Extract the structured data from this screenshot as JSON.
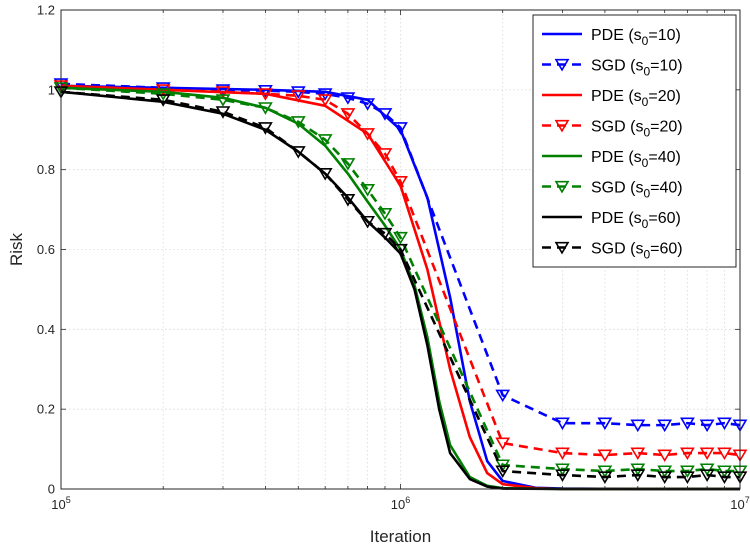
{
  "chart_data": {
    "type": "line",
    "title": "",
    "xlabel": "Iteration",
    "ylabel": "Risk",
    "xscale": "log",
    "xlim": [
      100000,
      10000000
    ],
    "ylim": [
      0,
      1.2
    ],
    "x_ticks": [
      {
        "value": 100000,
        "base": "10",
        "exp": "5"
      },
      {
        "value": 1000000,
        "base": "10",
        "exp": "6"
      },
      {
        "value": 10000000,
        "base": "10",
        "exp": "7"
      }
    ],
    "y_ticks": [
      {
        "value": 0,
        "label": "0"
      },
      {
        "value": 0.2,
        "label": "0.2"
      },
      {
        "value": 0.4,
        "label": "0.4"
      },
      {
        "value": 0.6,
        "label": "0.6"
      },
      {
        "value": 0.8,
        "label": "0.8"
      },
      {
        "value": 1,
        "label": "1"
      },
      {
        "value": 1.2,
        "label": "1.2"
      }
    ],
    "grid": true,
    "legend": {
      "position": "top-right"
    },
    "series": [
      {
        "name": "PDE",
        "sub": "0",
        "s0": "10",
        "color": "#0000ff",
        "style": "solid",
        "marker": "none",
        "x": [
          100000,
          200000,
          400000,
          600000,
          800000,
          1000000,
          1200000,
          1400000,
          1600000,
          1800000,
          2000000,
          2500000,
          3000000,
          5000000,
          10000000
        ],
        "y": [
          1.01,
          1.005,
          1.0,
          0.995,
          0.975,
          0.9,
          0.73,
          0.48,
          0.22,
          0.07,
          0.02,
          0.003,
          0.001,
          0.0,
          0.0
        ]
      },
      {
        "name": "SGD",
        "sub": "0",
        "s0": "10",
        "color": "#0000ff",
        "style": "dashed",
        "marker": "triangle-down",
        "x": [
          100000,
          200000,
          300000,
          400000,
          500000,
          600000,
          700000,
          800000,
          900000,
          1000000,
          2000000,
          3000000,
          4000000,
          5000000,
          6000000,
          7000000,
          8000000,
          9000000,
          10000000
        ],
        "y": [
          1.015,
          1.005,
          1.0,
          0.998,
          0.995,
          0.99,
          0.98,
          0.965,
          0.94,
          0.905,
          0.235,
          0.165,
          0.165,
          0.16,
          0.16,
          0.165,
          0.16,
          0.165,
          0.16
        ]
      },
      {
        "name": "PDE",
        "sub": "0",
        "s0": "20",
        "color": "#ff0000",
        "style": "solid",
        "marker": "none",
        "x": [
          100000,
          200000,
          400000,
          600000,
          800000,
          1000000,
          1200000,
          1400000,
          1600000,
          1800000,
          2000000,
          2500000,
          3000000,
          5000000,
          10000000
        ],
        "y": [
          1.01,
          1.0,
          0.99,
          0.96,
          0.89,
          0.76,
          0.55,
          0.3,
          0.13,
          0.04,
          0.012,
          0.002,
          0.0,
          0.0,
          0.0
        ]
      },
      {
        "name": "SGD",
        "sub": "0",
        "s0": "20",
        "color": "#ff0000",
        "style": "dashed",
        "marker": "triangle-down",
        "x": [
          100000,
          200000,
          300000,
          400000,
          500000,
          600000,
          700000,
          800000,
          900000,
          1000000,
          2000000,
          3000000,
          4000000,
          5000000,
          6000000,
          7000000,
          8000000,
          9000000,
          10000000
        ],
        "y": [
          1.01,
          1.0,
          0.995,
          0.99,
          0.985,
          0.975,
          0.94,
          0.89,
          0.84,
          0.77,
          0.115,
          0.09,
          0.085,
          0.09,
          0.085,
          0.09,
          0.09,
          0.09,
          0.085
        ]
      },
      {
        "name": "PDE",
        "sub": "0",
        "s0": "40",
        "color": "#008000",
        "style": "solid",
        "marker": "none",
        "x": [
          100000,
          200000,
          300000,
          400000,
          500000,
          600000,
          700000,
          800000,
          900000,
          1000000,
          1100000,
          1200000,
          1300000,
          1400000,
          1600000,
          1800000,
          2000000,
          3000000,
          10000000
        ],
        "y": [
          1.005,
          0.995,
          0.98,
          0.955,
          0.915,
          0.86,
          0.79,
          0.72,
          0.66,
          0.6,
          0.51,
          0.38,
          0.22,
          0.11,
          0.03,
          0.008,
          0.002,
          0.0,
          0.0
        ]
      },
      {
        "name": "SGD",
        "sub": "0",
        "s0": "40",
        "color": "#008000",
        "style": "dashed",
        "marker": "triangle-down",
        "x": [
          100000,
          200000,
          300000,
          400000,
          500000,
          600000,
          700000,
          800000,
          900000,
          1000000,
          2000000,
          3000000,
          4000000,
          5000000,
          6000000,
          7000000,
          8000000,
          9000000,
          10000000
        ],
        "y": [
          1.005,
          0.99,
          0.975,
          0.955,
          0.92,
          0.875,
          0.815,
          0.75,
          0.69,
          0.63,
          0.06,
          0.05,
          0.045,
          0.05,
          0.045,
          0.045,
          0.05,
          0.045,
          0.045
        ]
      },
      {
        "name": "PDE",
        "sub": "0",
        "s0": "60",
        "color": "#000000",
        "style": "solid",
        "marker": "none",
        "x": [
          100000,
          200000,
          300000,
          400000,
          500000,
          600000,
          700000,
          800000,
          900000,
          1000000,
          1100000,
          1200000,
          1300000,
          1400000,
          1600000,
          1800000,
          2000000,
          3000000,
          10000000
        ],
        "y": [
          0.995,
          0.97,
          0.94,
          0.9,
          0.845,
          0.79,
          0.73,
          0.67,
          0.63,
          0.59,
          0.5,
          0.36,
          0.2,
          0.09,
          0.025,
          0.006,
          0.001,
          0.0,
          0.0
        ]
      },
      {
        "name": "SGD",
        "sub": "0",
        "s0": "60",
        "color": "#000000",
        "style": "dashed",
        "marker": "triangle-down",
        "x": [
          100000,
          200000,
          300000,
          400000,
          500000,
          600000,
          700000,
          800000,
          900000,
          1000000,
          2000000,
          3000000,
          4000000,
          5000000,
          6000000,
          7000000,
          8000000,
          9000000,
          10000000
        ],
        "y": [
          0.995,
          0.975,
          0.945,
          0.905,
          0.845,
          0.79,
          0.725,
          0.67,
          0.64,
          0.6,
          0.045,
          0.035,
          0.03,
          0.035,
          0.03,
          0.03,
          0.035,
          0.03,
          0.03
        ]
      }
    ]
  }
}
